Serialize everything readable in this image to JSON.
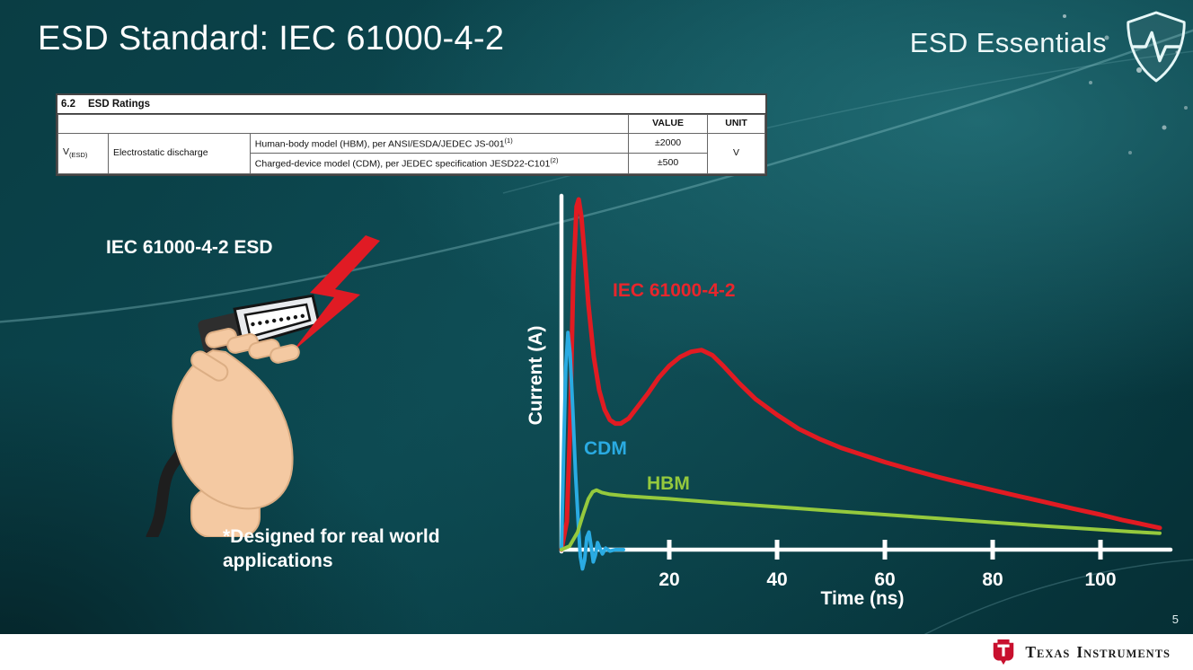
{
  "slide": {
    "title": "ESD Standard: IEC 61000-4-2",
    "brand": "ESD Essentials",
    "page_number": "5",
    "footer_words": [
      "Texas",
      "Instruments"
    ]
  },
  "datasheet_table": {
    "section_label": "6.2",
    "section_title": "ESD Ratings",
    "col_value": "VALUE",
    "col_unit": "UNIT",
    "param_symbol": "V",
    "param_subscript": "(ESD)",
    "param_name": "Electrostatic discharge",
    "rows": [
      {
        "desc": "Human-body model (HBM), per ANSI/ESDA/JEDEC JS-001",
        "sup": "(1)",
        "value": "±2000"
      },
      {
        "desc": "Charged-device model (CDM), per JEDEC specification JESD22-C101",
        "sup": "(2)",
        "value": "±500"
      }
    ],
    "unit": "V"
  },
  "illustration": {
    "caption": "IEC 61000-4-2 ESD",
    "note": "*Designed for real world applications"
  },
  "chart_data": {
    "type": "line",
    "title": "",
    "xlabel": "Time (ns)",
    "ylabel": "Current (A)",
    "xlim": [
      0,
      112
    ],
    "ylim": [
      -0.08,
      1.05
    ],
    "x_ticks": [
      20,
      40,
      60,
      80,
      100
    ],
    "grid": false,
    "legend_position": "inline-labels",
    "note": "No y-axis tick values shown; current values are relative amplitudes.",
    "series": [
      {
        "name": "IEC 61000-4-2",
        "color": "#e11b22",
        "width": 5,
        "points": [
          [
            0,
            0
          ],
          [
            1,
            0.08
          ],
          [
            1.6,
            0.35
          ],
          [
            2.2,
            0.78
          ],
          [
            2.8,
            0.98
          ],
          [
            3.2,
            1.0
          ],
          [
            3.7,
            0.95
          ],
          [
            4.3,
            0.84
          ],
          [
            5,
            0.7
          ],
          [
            6,
            0.55
          ],
          [
            7,
            0.455
          ],
          [
            8,
            0.4
          ],
          [
            9,
            0.37
          ],
          [
            10,
            0.36
          ],
          [
            11,
            0.36
          ],
          [
            12.5,
            0.375
          ],
          [
            14,
            0.405
          ],
          [
            16,
            0.445
          ],
          [
            18,
            0.49
          ],
          [
            20,
            0.525
          ],
          [
            22,
            0.55
          ],
          [
            24,
            0.565
          ],
          [
            26,
            0.57
          ],
          [
            28,
            0.555
          ],
          [
            30,
            0.525
          ],
          [
            33,
            0.475
          ],
          [
            36,
            0.43
          ],
          [
            40,
            0.385
          ],
          [
            44,
            0.345
          ],
          [
            48,
            0.315
          ],
          [
            52,
            0.29
          ],
          [
            56,
            0.27
          ],
          [
            60,
            0.25
          ],
          [
            65,
            0.228
          ],
          [
            70,
            0.207
          ],
          [
            75,
            0.188
          ],
          [
            80,
            0.17
          ],
          [
            85,
            0.152
          ],
          [
            90,
            0.135
          ],
          [
            95,
            0.117
          ],
          [
            100,
            0.1
          ],
          [
            104,
            0.085
          ],
          [
            108,
            0.072
          ],
          [
            111,
            0.062
          ]
        ]
      },
      {
        "name": "CDM",
        "color": "#2aabe2",
        "width": 4,
        "points": [
          [
            0,
            0
          ],
          [
            0.4,
            0.28
          ],
          [
            0.8,
            0.52
          ],
          [
            1.2,
            0.62
          ],
          [
            1.6,
            0.56
          ],
          [
            2.1,
            0.4
          ],
          [
            2.6,
            0.22
          ],
          [
            3.1,
            0.08
          ],
          [
            3.5,
            -0.02
          ],
          [
            3.9,
            -0.055
          ],
          [
            4.3,
            -0.03
          ],
          [
            4.7,
            0.035
          ],
          [
            5.1,
            0.05
          ],
          [
            5.5,
            0.01
          ],
          [
            5.9,
            -0.035
          ],
          [
            6.3,
            -0.015
          ],
          [
            6.7,
            0.02
          ],
          [
            7.1,
            0.005
          ],
          [
            7.6,
            -0.012
          ],
          [
            8.2,
            0.004
          ],
          [
            9,
            -0.004
          ],
          [
            10,
            0
          ],
          [
            11.5,
            0
          ]
        ]
      },
      {
        "name": "HBM",
        "color": "#95c93d",
        "width": 4,
        "points": [
          [
            0,
            0
          ],
          [
            1.5,
            0.01
          ],
          [
            3,
            0.05
          ],
          [
            4,
            0.1
          ],
          [
            5,
            0.145
          ],
          [
            5.8,
            0.165
          ],
          [
            6.5,
            0.17
          ],
          [
            7.5,
            0.163
          ],
          [
            9,
            0.158
          ],
          [
            12,
            0.153
          ],
          [
            16,
            0.149
          ],
          [
            20,
            0.145
          ],
          [
            25,
            0.139
          ],
          [
            30,
            0.133
          ],
          [
            40,
            0.122
          ],
          [
            50,
            0.111
          ],
          [
            60,
            0.1
          ],
          [
            70,
            0.089
          ],
          [
            80,
            0.078
          ],
          [
            90,
            0.067
          ],
          [
            100,
            0.057
          ],
          [
            106,
            0.051
          ],
          [
            111,
            0.047
          ]
        ]
      }
    ]
  }
}
